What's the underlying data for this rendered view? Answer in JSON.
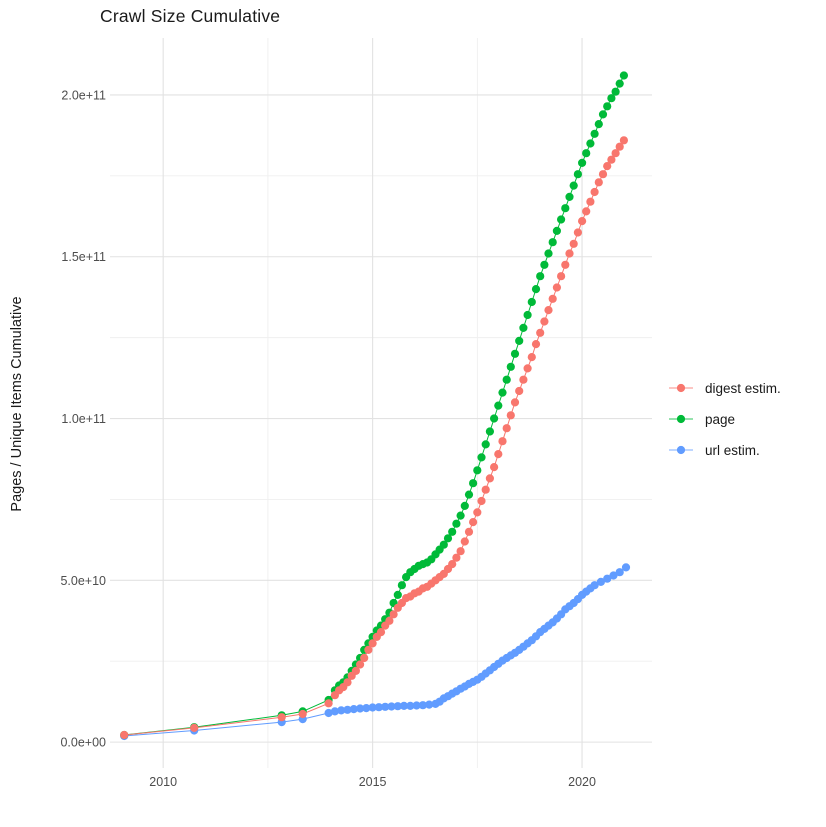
{
  "chart_data": {
    "type": "scatter",
    "title": "Crawl Size Cumulative",
    "xlabel": "",
    "ylabel": "Pages / Unique Items Cumulative",
    "legend_position": "right",
    "grid": true,
    "xlim": [
      2008.73,
      2021.67
    ],
    "ylim": [
      -8000000000.0,
      217600000000.0
    ],
    "x_ticks": [
      {
        "v": 2010,
        "label": "2010"
      },
      {
        "v": 2015,
        "label": "2015"
      },
      {
        "v": 2020,
        "label": "2020"
      }
    ],
    "x_minor_ticks": [
      2012.5,
      2017.5
    ],
    "y_ticks": [
      {
        "v": 0.0,
        "label": "0.0e+00"
      },
      {
        "v": 50000000000.0,
        "label": "5.0e+10"
      },
      {
        "v": 100000000000.0,
        "label": "1.0e+11"
      },
      {
        "v": 150000000000.0,
        "label": "1.5e+11"
      },
      {
        "v": 200000000000.0,
        "label": "2.0e+11"
      }
    ],
    "y_minor_ticks": [
      25000000000.0,
      75000000000.0,
      125000000000.0,
      175000000000.0
    ],
    "colors": {
      "major_grid": "#e2e2e2",
      "minor_grid": "#efefef",
      "axis_text": "#4d4d4d"
    },
    "series": [
      {
        "name": "url estim.",
        "color": "#619CFF",
        "points": [
          [
            2009.07,
            1900000000.0
          ],
          [
            2010.74,
            3600000000.0
          ],
          [
            2012.83,
            6200000000.0
          ],
          [
            2013.33,
            7100000000.0
          ],
          [
            2013.95,
            9000000000.0
          ],
          [
            2014.1,
            9500000000.0
          ],
          [
            2014.25,
            9800000000.0
          ],
          [
            2014.4,
            10000000000.0
          ],
          [
            2014.55,
            10200000000.0
          ],
          [
            2014.7,
            10400000000.0
          ],
          [
            2014.85,
            10500000000.0
          ],
          [
            2015.0,
            10700000000.0
          ],
          [
            2015.15,
            10800000000.0
          ],
          [
            2015.3,
            10900000000.0
          ],
          [
            2015.45,
            11000000000.0
          ],
          [
            2015.6,
            11100000000.0
          ],
          [
            2015.75,
            11200000000.0
          ],
          [
            2015.9,
            11200000000.0
          ],
          [
            2016.05,
            11300000000.0
          ],
          [
            2016.2,
            11400000000.0
          ],
          [
            2016.35,
            11600000000.0
          ],
          [
            2016.5,
            11800000000.0
          ],
          [
            2016.6,
            12500000000.0
          ],
          [
            2016.7,
            13500000000.0
          ],
          [
            2016.8,
            14200000000.0
          ],
          [
            2016.9,
            15000000000.0
          ],
          [
            2017.0,
            15700000000.0
          ],
          [
            2017.1,
            16500000000.0
          ],
          [
            2017.2,
            17200000000.0
          ],
          [
            2017.3,
            18000000000.0
          ],
          [
            2017.4,
            18600000000.0
          ],
          [
            2017.5,
            19300000000.0
          ],
          [
            2017.6,
            20200000000.0
          ],
          [
            2017.7,
            21200000000.0
          ],
          [
            2017.8,
            22200000000.0
          ],
          [
            2017.9,
            23200000000.0
          ],
          [
            2018.0,
            24200000000.0
          ],
          [
            2018.1,
            25200000000.0
          ],
          [
            2018.2,
            26000000000.0
          ],
          [
            2018.3,
            26800000000.0
          ],
          [
            2018.4,
            27600000000.0
          ],
          [
            2018.5,
            28500000000.0
          ],
          [
            2018.6,
            29500000000.0
          ],
          [
            2018.7,
            30500000000.0
          ],
          [
            2018.8,
            31500000000.0
          ],
          [
            2018.9,
            32700000000.0
          ],
          [
            2019.0,
            34000000000.0
          ],
          [
            2019.1,
            35000000000.0
          ],
          [
            2019.2,
            36000000000.0
          ],
          [
            2019.3,
            37000000000.0
          ],
          [
            2019.4,
            38200000000.0
          ],
          [
            2019.5,
            39500000000.0
          ],
          [
            2019.6,
            41000000000.0
          ],
          [
            2019.7,
            42000000000.0
          ],
          [
            2019.8,
            43000000000.0
          ],
          [
            2019.9,
            44200000000.0
          ],
          [
            2020.0,
            45500000000.0
          ],
          [
            2020.1,
            46500000000.0
          ],
          [
            2020.2,
            47500000000.0
          ],
          [
            2020.3,
            48500000000.0
          ],
          [
            2020.45,
            49500000000.0
          ],
          [
            2020.6,
            50500000000.0
          ],
          [
            2020.75,
            51500000000.0
          ],
          [
            2020.9,
            52500000000.0
          ],
          [
            2021.05,
            54000000000.0
          ]
        ]
      },
      {
        "name": "page",
        "color": "#00BA38",
        "points": [
          [
            2009.07,
            2200000000.0
          ],
          [
            2010.74,
            4600000000.0
          ],
          [
            2012.83,
            8300000000.0
          ],
          [
            2013.33,
            9500000000.0
          ],
          [
            2013.95,
            13000000000.0
          ],
          [
            2014.1,
            16000000000.0
          ],
          [
            2014.2,
            17500000000.0
          ],
          [
            2014.3,
            18500000000.0
          ],
          [
            2014.4,
            20000000000.0
          ],
          [
            2014.5,
            22000000000.0
          ],
          [
            2014.6,
            24000000000.0
          ],
          [
            2014.7,
            26000000000.0
          ],
          [
            2014.8,
            28500000000.0
          ],
          [
            2014.9,
            30500000000.0
          ],
          [
            2015.0,
            32500000000.0
          ],
          [
            2015.1,
            34500000000.0
          ],
          [
            2015.2,
            36000000000.0
          ],
          [
            2015.3,
            38000000000.0
          ],
          [
            2015.4,
            40000000000.0
          ],
          [
            2015.5,
            43000000000.0
          ],
          [
            2015.6,
            45500000000.0
          ],
          [
            2015.7,
            48500000000.0
          ],
          [
            2015.8,
            51000000000.0
          ],
          [
            2015.9,
            52500000000.0
          ],
          [
            2016.0,
            53500000000.0
          ],
          [
            2016.1,
            54500000000.0
          ],
          [
            2016.2,
            55000000000.0
          ],
          [
            2016.3,
            55500000000.0
          ],
          [
            2016.4,
            56500000000.0
          ],
          [
            2016.5,
            58000000000.0
          ],
          [
            2016.6,
            59500000000.0
          ],
          [
            2016.7,
            61000000000.0
          ],
          [
            2016.8,
            63000000000.0
          ],
          [
            2016.9,
            65000000000.0
          ],
          [
            2017.0,
            67500000000.0
          ],
          [
            2017.1,
            70000000000.0
          ],
          [
            2017.2,
            73000000000.0
          ],
          [
            2017.3,
            76500000000.0
          ],
          [
            2017.4,
            80000000000.0
          ],
          [
            2017.5,
            84000000000.0
          ],
          [
            2017.6,
            88000000000.0
          ],
          [
            2017.7,
            92000000000.0
          ],
          [
            2017.8,
            96000000000.0
          ],
          [
            2017.9,
            100000000000.0
          ],
          [
            2018.0,
            104000000000.0
          ],
          [
            2018.1,
            108000000000.0
          ],
          [
            2018.2,
            112000000000.0
          ],
          [
            2018.3,
            116000000000.0
          ],
          [
            2018.4,
            120000000000.0
          ],
          [
            2018.5,
            124000000000.0
          ],
          [
            2018.6,
            128000000000.0
          ],
          [
            2018.7,
            132000000000.0
          ],
          [
            2018.8,
            136000000000.0
          ],
          [
            2018.9,
            140000000000.0
          ],
          [
            2019.0,
            144000000000.0
          ],
          [
            2019.1,
            147500000000.0
          ],
          [
            2019.2,
            151000000000.0
          ],
          [
            2019.3,
            154500000000.0
          ],
          [
            2019.4,
            158000000000.0
          ],
          [
            2019.5,
            161500000000.0
          ],
          [
            2019.6,
            165000000000.0
          ],
          [
            2019.7,
            168500000000.0
          ],
          [
            2019.8,
            172000000000.0
          ],
          [
            2019.9,
            175500000000.0
          ],
          [
            2020.0,
            179000000000.0
          ],
          [
            2020.1,
            182000000000.0
          ],
          [
            2020.2,
            185000000000.0
          ],
          [
            2020.3,
            188000000000.0
          ],
          [
            2020.4,
            191000000000.0
          ],
          [
            2020.5,
            194000000000.0
          ],
          [
            2020.6,
            196500000000.0
          ],
          [
            2020.7,
            199000000000.0
          ],
          [
            2020.8,
            201000000000.0
          ],
          [
            2020.9,
            203500000000.0
          ],
          [
            2021.0,
            206000000000.0
          ]
        ]
      },
      {
        "name": "digest estim.",
        "color": "#F8766D",
        "points": [
          [
            2009.07,
            2200000000.0
          ],
          [
            2010.74,
            4400000000.0
          ],
          [
            2012.83,
            7700000000.0
          ],
          [
            2013.33,
            8700000000.0
          ],
          [
            2013.95,
            12000000000.0
          ],
          [
            2014.1,
            14500000000.0
          ],
          [
            2014.2,
            16000000000.0
          ],
          [
            2014.3,
            17000000000.0
          ],
          [
            2014.4,
            18500000000.0
          ],
          [
            2014.5,
            20500000000.0
          ],
          [
            2014.6,
            22000000000.0
          ],
          [
            2014.7,
            24000000000.0
          ],
          [
            2014.8,
            26000000000.0
          ],
          [
            2014.9,
            28500000000.0
          ],
          [
            2015.0,
            30500000000.0
          ],
          [
            2015.1,
            32500000000.0
          ],
          [
            2015.2,
            34000000000.0
          ],
          [
            2015.3,
            36000000000.0
          ],
          [
            2015.4,
            37500000000.0
          ],
          [
            2015.5,
            39500000000.0
          ],
          [
            2015.6,
            41500000000.0
          ],
          [
            2015.7,
            43000000000.0
          ],
          [
            2015.8,
            44500000000.0
          ],
          [
            2015.9,
            45000000000.0
          ],
          [
            2016.0,
            46000000000.0
          ],
          [
            2016.1,
            46500000000.0
          ],
          [
            2016.2,
            47500000000.0
          ],
          [
            2016.3,
            48000000000.0
          ],
          [
            2016.4,
            49000000000.0
          ],
          [
            2016.5,
            50000000000.0
          ],
          [
            2016.6,
            51000000000.0
          ],
          [
            2016.7,
            52000000000.0
          ],
          [
            2016.8,
            53500000000.0
          ],
          [
            2016.9,
            55000000000.0
          ],
          [
            2017.0,
            57000000000.0
          ],
          [
            2017.1,
            59000000000.0
          ],
          [
            2017.2,
            62000000000.0
          ],
          [
            2017.3,
            65000000000.0
          ],
          [
            2017.4,
            68000000000.0
          ],
          [
            2017.5,
            71000000000.0
          ],
          [
            2017.6,
            74500000000.0
          ],
          [
            2017.7,
            78000000000.0
          ],
          [
            2017.8,
            81500000000.0
          ],
          [
            2017.9,
            85000000000.0
          ],
          [
            2018.0,
            89000000000.0
          ],
          [
            2018.1,
            93000000000.0
          ],
          [
            2018.2,
            97000000000.0
          ],
          [
            2018.3,
            101000000000.0
          ],
          [
            2018.4,
            105000000000.0
          ],
          [
            2018.5,
            108500000000.0
          ],
          [
            2018.6,
            112000000000.0
          ],
          [
            2018.7,
            115500000000.0
          ],
          [
            2018.8,
            119000000000.0
          ],
          [
            2018.9,
            123000000000.0
          ],
          [
            2019.0,
            126500000000.0
          ],
          [
            2019.1,
            130000000000.0
          ],
          [
            2019.2,
            133500000000.0
          ],
          [
            2019.3,
            137000000000.0
          ],
          [
            2019.4,
            140500000000.0
          ],
          [
            2019.5,
            144000000000.0
          ],
          [
            2019.6,
            147500000000.0
          ],
          [
            2019.7,
            151000000000.0
          ],
          [
            2019.8,
            154000000000.0
          ],
          [
            2019.9,
            157500000000.0
          ],
          [
            2020.0,
            161000000000.0
          ],
          [
            2020.1,
            164000000000.0
          ],
          [
            2020.2,
            167000000000.0
          ],
          [
            2020.3,
            170000000000.0
          ],
          [
            2020.4,
            173000000000.0
          ],
          [
            2020.5,
            175500000000.0
          ],
          [
            2020.6,
            178000000000.0
          ],
          [
            2020.7,
            180000000000.0
          ],
          [
            2020.8,
            182000000000.0
          ],
          [
            2020.9,
            184000000000.0
          ],
          [
            2021.0,
            186000000000.0
          ]
        ]
      }
    ],
    "legend_order": [
      "digest estim.",
      "page",
      "url estim."
    ]
  }
}
